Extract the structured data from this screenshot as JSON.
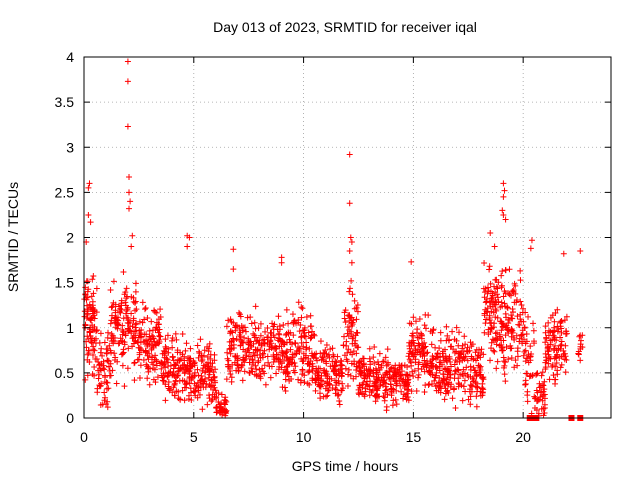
{
  "chart_data": {
    "type": "scatter",
    "title": "Day 013 of 2023, SRMTID for receiver iqal",
    "xlabel": "GPS time / hours",
    "ylabel": "SRMTID / TECUs",
    "xlim": [
      0,
      24
    ],
    "ylim": [
      0,
      4
    ],
    "grid": true,
    "marker": "+",
    "color": "#ff0000",
    "x_ticks": [
      0,
      5,
      10,
      15,
      20
    ],
    "x_tick_labels": [
      "0",
      "5",
      "10",
      "15",
      "20"
    ],
    "y_ticks": [
      0,
      0.5,
      1,
      1.5,
      2,
      2.5,
      3,
      3.5,
      4
    ],
    "y_tick_labels": [
      "0",
      "0.5",
      "1",
      "1.5",
      "2",
      "2.5",
      "3",
      "3.5",
      "4"
    ],
    "series": [
      {
        "name": "SRMTID",
        "segments": [
          {
            "x": [
              0.0,
              0.6
            ],
            "base": 1.0,
            "spread": 0.55,
            "n": 90
          },
          {
            "x": [
              0.6,
              1.2
            ],
            "base": 0.55,
            "spread": 0.45,
            "n": 55
          },
          {
            "x": [
              1.2,
              2.4
            ],
            "base": 1.0,
            "spread": 0.55,
            "n": 130
          },
          {
            "x": [
              2.4,
              3.5
            ],
            "base": 0.85,
            "spread": 0.4,
            "n": 110
          },
          {
            "x": [
              3.5,
              4.7
            ],
            "base": 0.55,
            "spread": 0.35,
            "n": 120
          },
          {
            "x": [
              4.7,
              6.0
            ],
            "base": 0.45,
            "spread": 0.35,
            "n": 130
          },
          {
            "x": [
              6.0,
              6.5
            ],
            "base": 0.12,
            "spread": 0.15,
            "n": 40
          },
          {
            "x": [
              6.5,
              9.0
            ],
            "base": 0.75,
            "spread": 0.4,
            "n": 230
          },
          {
            "x": [
              9.0,
              10.5
            ],
            "base": 0.75,
            "spread": 0.45,
            "n": 150
          },
          {
            "x": [
              10.5,
              11.8
            ],
            "base": 0.5,
            "spread": 0.35,
            "n": 130
          },
          {
            "x": [
              11.8,
              12.5
            ],
            "base": 0.9,
            "spread": 0.6,
            "n": 70
          },
          {
            "x": [
              12.5,
              14.0
            ],
            "base": 0.45,
            "spread": 0.3,
            "n": 150
          },
          {
            "x": [
              14.0,
              14.8
            ],
            "base": 0.4,
            "spread": 0.25,
            "n": 80
          },
          {
            "x": [
              14.8,
              16.0
            ],
            "base": 0.7,
            "spread": 0.4,
            "n": 120
          },
          {
            "x": [
              16.0,
              17.5
            ],
            "base": 0.6,
            "spread": 0.4,
            "n": 150
          },
          {
            "x": [
              17.5,
              18.2
            ],
            "base": 0.5,
            "spread": 0.35,
            "n": 70
          },
          {
            "x": [
              18.2,
              19.0
            ],
            "base": 1.1,
            "spread": 0.55,
            "n": 90
          },
          {
            "x": [
              19.0,
              20.0
            ],
            "base": 1.0,
            "spread": 0.6,
            "n": 110
          },
          {
            "x": [
              20.0,
              20.5
            ],
            "base": 0.6,
            "spread": 0.5,
            "n": 40
          },
          {
            "x": [
              20.5,
              21.0
            ],
            "base": 0.3,
            "spread": 0.3,
            "n": 40
          },
          {
            "x": [
              21.0,
              22.0
            ],
            "base": 0.8,
            "spread": 0.4,
            "n": 100
          },
          {
            "x": [
              22.5,
              22.7
            ],
            "base": 0.8,
            "spread": 0.2,
            "n": 12
          }
        ],
        "outliers": [
          {
            "x": 2.0,
            "y": 3.95
          },
          {
            "x": 2.0,
            "y": 3.73
          },
          {
            "x": 2.0,
            "y": 3.23
          },
          {
            "x": 2.05,
            "y": 2.67
          },
          {
            "x": 2.05,
            "y": 2.5
          },
          {
            "x": 2.1,
            "y": 2.4
          },
          {
            "x": 2.05,
            "y": 2.32
          },
          {
            "x": 2.2,
            "y": 2.02
          },
          {
            "x": 2.15,
            "y": 1.9
          },
          {
            "x": 0.25,
            "y": 2.6
          },
          {
            "x": 0.2,
            "y": 2.55
          },
          {
            "x": 0.2,
            "y": 2.25
          },
          {
            "x": 0.3,
            "y": 2.17
          },
          {
            "x": 0.1,
            "y": 1.95
          },
          {
            "x": 4.7,
            "y": 2.02
          },
          {
            "x": 4.8,
            "y": 2.0
          },
          {
            "x": 4.7,
            "y": 1.9
          },
          {
            "x": 6.8,
            "y": 1.87
          },
          {
            "x": 6.8,
            "y": 1.65
          },
          {
            "x": 9.0,
            "y": 1.78
          },
          {
            "x": 9.0,
            "y": 1.72
          },
          {
            "x": 12.1,
            "y": 2.92
          },
          {
            "x": 12.1,
            "y": 2.38
          },
          {
            "x": 12.15,
            "y": 2.0
          },
          {
            "x": 12.2,
            "y": 1.95
          },
          {
            "x": 12.1,
            "y": 1.85
          },
          {
            "x": 12.2,
            "y": 1.72
          },
          {
            "x": 14.9,
            "y": 1.73
          },
          {
            "x": 18.5,
            "y": 2.05
          },
          {
            "x": 18.7,
            "y": 1.9
          },
          {
            "x": 19.1,
            "y": 2.6
          },
          {
            "x": 19.15,
            "y": 2.52
          },
          {
            "x": 19.1,
            "y": 2.45
          },
          {
            "x": 19.05,
            "y": 2.3
          },
          {
            "x": 19.1,
            "y": 2.25
          },
          {
            "x": 19.2,
            "y": 2.2
          },
          {
            "x": 20.4,
            "y": 1.97
          },
          {
            "x": 20.35,
            "y": 1.88
          },
          {
            "x": 21.85,
            "y": 1.82
          },
          {
            "x": 22.6,
            "y": 1.85
          }
        ],
        "zero_points": [
          20.3,
          20.4,
          20.5,
          20.6,
          22.2,
          22.6
        ]
      }
    ]
  }
}
